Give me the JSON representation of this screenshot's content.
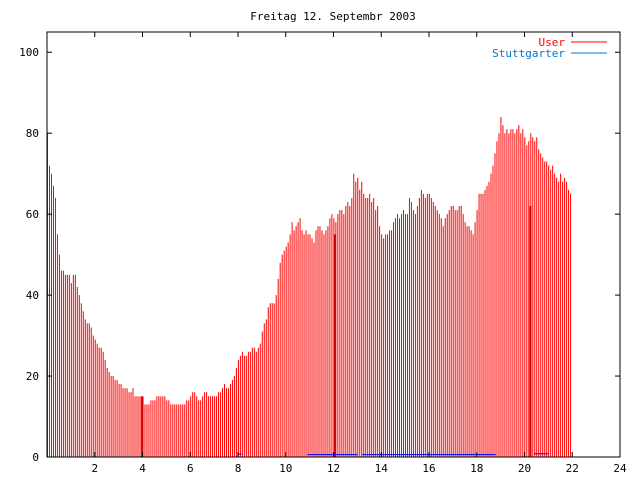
{
  "chart_data": {
    "type": "bar",
    "title": "Freitag 12. Septembr 2003",
    "xlabel": "",
    "ylabel": "",
    "xlim": [
      0,
      24
    ],
    "ylim": [
      0,
      105
    ],
    "grid": false,
    "legend_position": "top-right",
    "x_ticks": [
      2,
      4,
      6,
      8,
      10,
      12,
      14,
      16,
      18,
      20,
      22,
      24
    ],
    "x_tick_labels": [
      "2",
      "4",
      "6",
      "8",
      "10",
      "12",
      "14",
      "16",
      "18",
      "20",
      "22",
      "24"
    ],
    "y_ticks": [
      0,
      20,
      40,
      60,
      80,
      100
    ],
    "y_tick_labels": [
      "0",
      "20",
      "40",
      "60",
      "80",
      "100"
    ],
    "series": [
      {
        "name": "User",
        "color": "#ff0000",
        "x_step_hours": 0.0833,
        "values": [
          80,
          72,
          70,
          67,
          64,
          55,
          50,
          46,
          46,
          45,
          45,
          45,
          43,
          45,
          45,
          42,
          40,
          38,
          36,
          34,
          33,
          33,
          32,
          30,
          29,
          28,
          27,
          27,
          26,
          24,
          22,
          21,
          20,
          20,
          19,
          19,
          18,
          18,
          17,
          17,
          17,
          16,
          16,
          17,
          15,
          15,
          15,
          15,
          14,
          13,
          13,
          13,
          14,
          14,
          14,
          15,
          15,
          15,
          15,
          15,
          14,
          14,
          13,
          13,
          13,
          13,
          13,
          13,
          13,
          13,
          14,
          14,
          15,
          16,
          16,
          15,
          14,
          14,
          15,
          16,
          16,
          15,
          15,
          15,
          15,
          15,
          16,
          16,
          17,
          18,
          17,
          17,
          18,
          19,
          20,
          22,
          24,
          25,
          26,
          25,
          25,
          26,
          26,
          27,
          27,
          26,
          27,
          28,
          31,
          33,
          34,
          37,
          38,
          38,
          38,
          40,
          44,
          48,
          50,
          51,
          52,
          53,
          55,
          58,
          56,
          57,
          58,
          59,
          56,
          55,
          56,
          55,
          55,
          54,
          53,
          56,
          57,
          57,
          56,
          55,
          56,
          57,
          59,
          60,
          59,
          58,
          60,
          61,
          61,
          60,
          62,
          63,
          62,
          64,
          70,
          68,
          69,
          66,
          68,
          65,
          64,
          64,
          65,
          63,
          64,
          61,
          62,
          57,
          55,
          54,
          55,
          55,
          56,
          56,
          58,
          59,
          60,
          59,
          60,
          61,
          60,
          60,
          64,
          63,
          61,
          60,
          62,
          64,
          66,
          65,
          64,
          65,
          65,
          64,
          63,
          62,
          61,
          60,
          59,
          57,
          59,
          60,
          61,
          62,
          62,
          61,
          61,
          62,
          62,
          60,
          58,
          57,
          57,
          56,
          55,
          58,
          61,
          65,
          65,
          65,
          66,
          67,
          68,
          70,
          72,
          75,
          78,
          80,
          84,
          82,
          80,
          81,
          80,
          81,
          81,
          80,
          81,
          82,
          80,
          81,
          79,
          77,
          78,
          80,
          79,
          78,
          79,
          76,
          75,
          74,
          73,
          73,
          72,
          71,
          72,
          70,
          69,
          68,
          70,
          68,
          69,
          68,
          66,
          65
        ],
        "spikes": [
          {
            "x": 4.0,
            "value": 15
          },
          {
            "x": 12.05,
            "value": 55
          },
          {
            "x": 20.25,
            "value": 62
          }
        ]
      },
      {
        "name": "Stuttgarter",
        "color": "#0000ff",
        "segments": [
          {
            "x_start": 8.0,
            "x_end": 8.15,
            "value": 0.7
          },
          {
            "x_start": 10.9,
            "x_end": 13.0,
            "value": 0.6
          },
          {
            "x_start": 13.2,
            "x_end": 18.8,
            "value": 0.6
          },
          {
            "x_start": 20.4,
            "x_end": 21.0,
            "value": 0.8
          }
        ]
      }
    ]
  }
}
